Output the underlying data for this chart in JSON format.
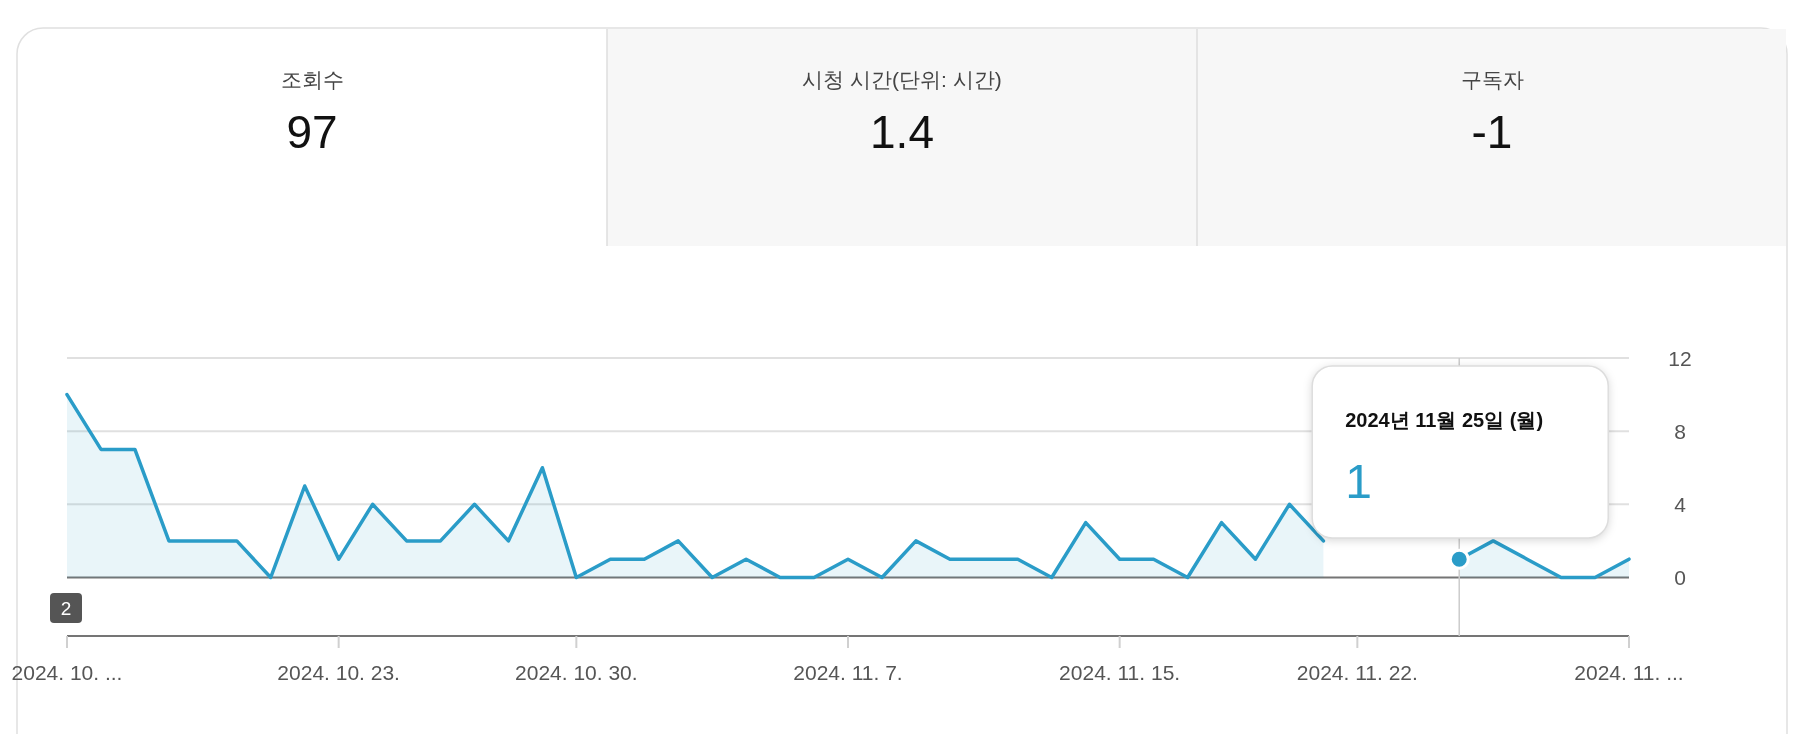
{
  "chart_data": [
    {
      "type": "other",
      "categories": [
        "조회수",
        "시청 시간(단위: 시간)",
        "구독자"
      ],
      "values": [
        97,
        1.4,
        -1
      ],
      "data_labels": true
    },
    {
      "type": "area",
      "x": [
        "2024-10-15",
        "2024-10-16",
        "2024-10-17",
        "2024-10-18",
        "2024-10-19",
        "2024-10-20",
        "2024-10-21",
        "2024-10-22",
        "2024-10-23",
        "2024-10-24",
        "2024-10-25",
        "2024-10-26",
        "2024-10-27",
        "2024-10-28",
        "2024-10-29",
        "2024-10-30",
        "2024-10-31",
        "2024-11-01",
        "2024-11-02",
        "2024-11-03",
        "2024-11-04",
        "2024-11-05",
        "2024-11-06",
        "2024-11-07",
        "2024-11-08",
        "2024-11-09",
        "2024-11-10",
        "2024-11-11",
        "2024-11-12",
        "2024-11-13",
        "2024-11-14",
        "2024-11-15",
        "2024-11-16",
        "2024-11-17",
        "2024-11-18",
        "2024-11-19",
        "2024-11-20",
        "2024-11-21",
        "2024-11-22",
        "2024-11-23",
        "2024-11-24",
        "2024-11-25",
        "2024-11-26",
        "2024-11-27",
        "2024-11-28",
        "2024-11-29",
        "2024-11-30"
      ],
      "series": [
        {
          "color": "#2a9cc8",
          "values": [
            10,
            7,
            7,
            2,
            2,
            2,
            0,
            5,
            1,
            4,
            2,
            2,
            4,
            2,
            6,
            0,
            1,
            1,
            2,
            0,
            1,
            0,
            0,
            1,
            0,
            2,
            1,
            1,
            1,
            0,
            3,
            1,
            1,
            0,
            3,
            1,
            4,
            2,
            null,
            null,
            null,
            1,
            2,
            1,
            0,
            0,
            1
          ]
        }
      ],
      "xlim": [
        "2024-10-15",
        "2024-11-30"
      ],
      "xticks": [
        {
          "value": "2024-10-15",
          "label": "2024. 10. ..."
        },
        {
          "value": "2024-10-23",
          "label": "2024. 10. 23."
        },
        {
          "value": "2024-10-30",
          "label": "2024. 10. 30."
        },
        {
          "value": "2024-11-07",
          "label": "2024. 11. 7."
        },
        {
          "value": "2024-11-15",
          "label": "2024. 11. 15."
        },
        {
          "value": "2024-11-22",
          "label": "2024. 11. 22."
        },
        {
          "value": "2024-11-30",
          "label": "2024. 11. ..."
        }
      ],
      "ylim": [
        -3.2,
        12
      ],
      "yticks": [
        0,
        4,
        8,
        12
      ],
      "grid": "y",
      "ref_lines": [
        {
          "axis": "x",
          "value": "2024-11-25",
          "color": "#cccccc"
        }
      ],
      "annotations": [
        "2",
        "2024년 11월 25일 (월)",
        "1"
      ]
    }
  ]
}
